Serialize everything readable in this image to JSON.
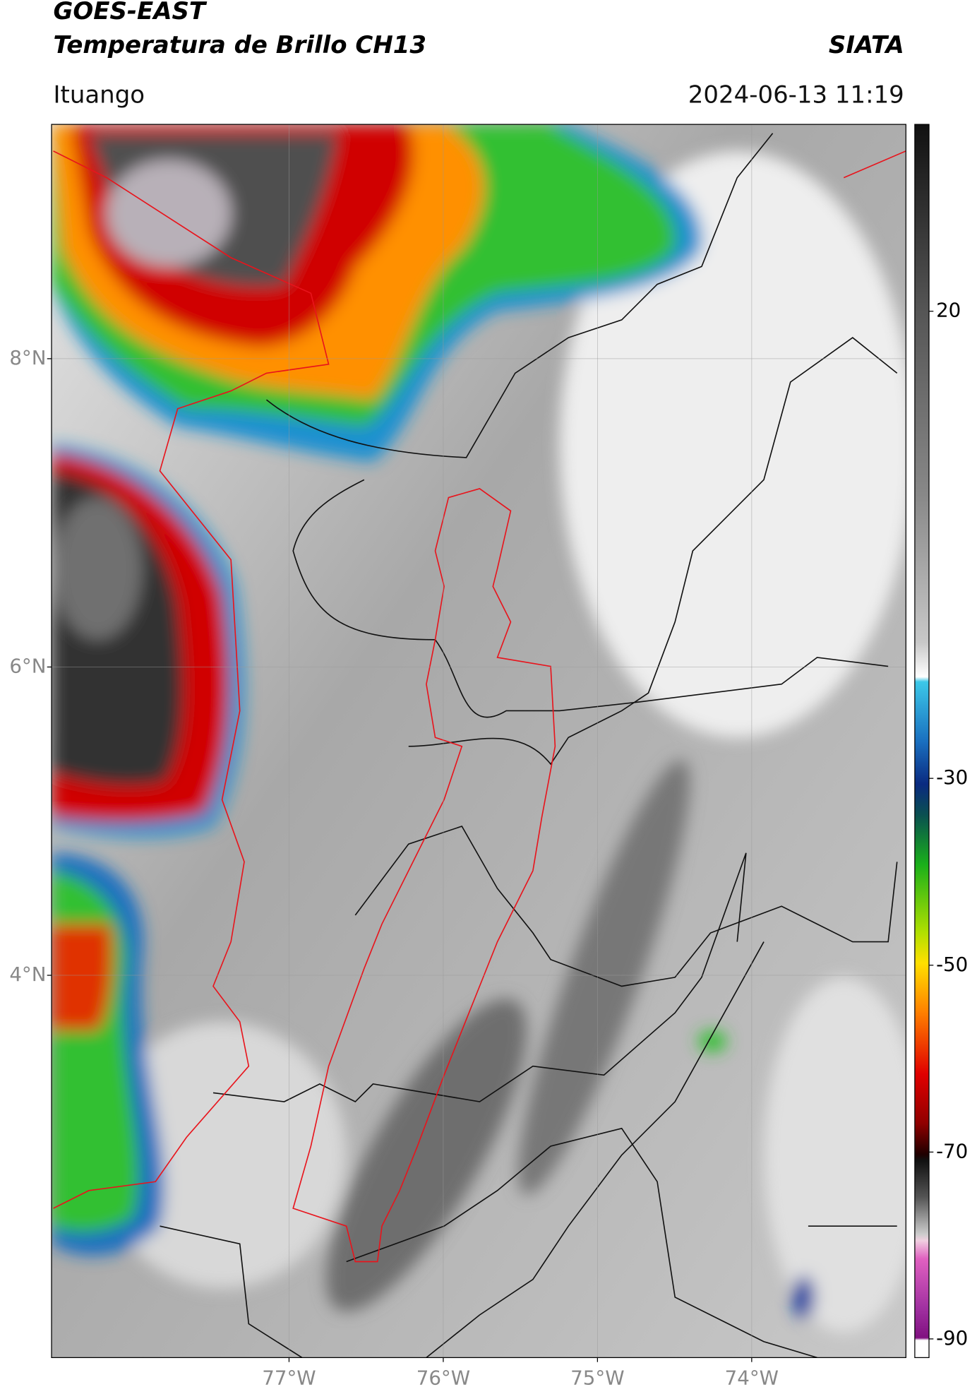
{
  "header": {
    "title_line1": "GOES-EAST",
    "title_line2": "Temperatura de Brillo CH13",
    "source": "SIATA",
    "location": "Ituango",
    "timestamp": "2024-06-13 11:19"
  },
  "map": {
    "latlim": [
      1.52,
      9.52
    ],
    "lonlim": [
      -78.54,
      -73.0
    ],
    "lat_ticks": [
      {
        "value": 8,
        "label": "8°N"
      },
      {
        "value": 6,
        "label": "6°N"
      },
      {
        "value": 4,
        "label": "4°N"
      }
    ],
    "lon_ticks": [
      {
        "value": -77,
        "label": "77°W"
      },
      {
        "value": -76,
        "label": "76°W"
      },
      {
        "value": -75,
        "label": "75°W"
      },
      {
        "value": -74,
        "label": "74°W"
      }
    ],
    "grid": true
  },
  "colorbar": {
    "lim": [
      -92,
      40
    ],
    "ticks": [
      20,
      -30,
      -50,
      -70,
      -90
    ]
  }
}
